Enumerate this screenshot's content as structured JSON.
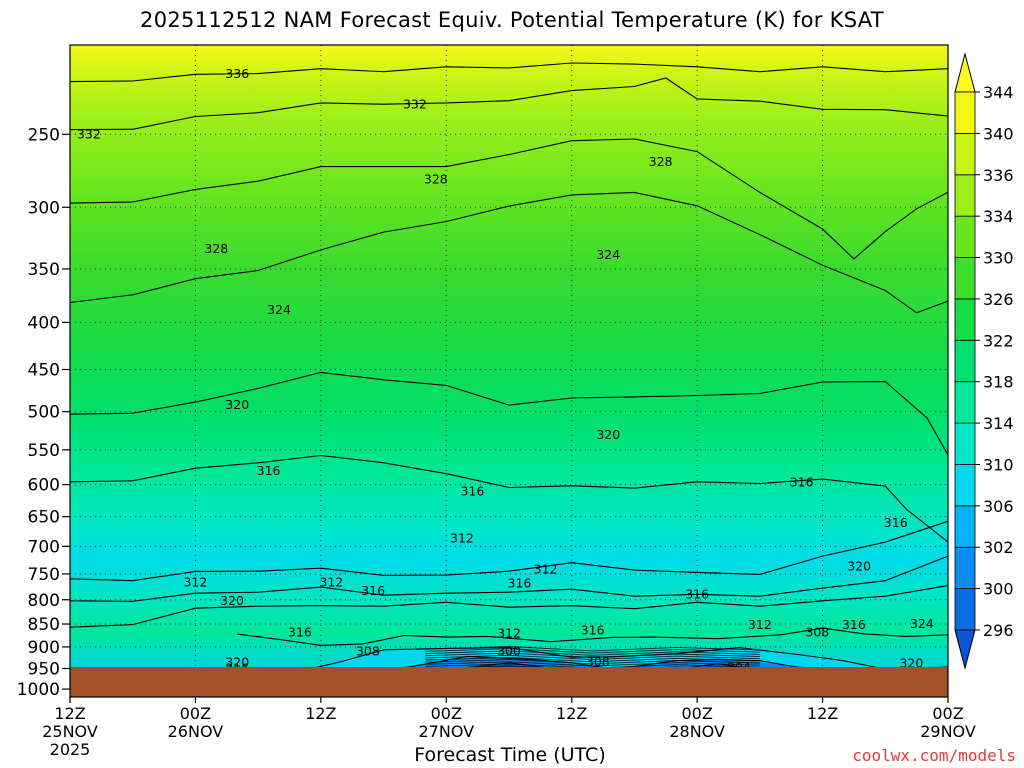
{
  "chart_data": {
    "type": "heatmap",
    "title": "2025112512 NAM Forecast Equiv. Potential Temperature (K) for KSAT",
    "xlabel": "Forecast Time (UTC)",
    "credit": "coolwx.com/models",
    "x_ticks": [
      {
        "hours": 0,
        "line1": "12Z",
        "line2": "25NOV",
        "line3": "2025"
      },
      {
        "hours": 12,
        "line1": "00Z",
        "line2": "26NOV",
        "line3": ""
      },
      {
        "hours": 24,
        "line1": "12Z",
        "line2": "",
        "line3": ""
      },
      {
        "hours": 36,
        "line1": "00Z",
        "line2": "27NOV",
        "line3": ""
      },
      {
        "hours": 48,
        "line1": "12Z",
        "line2": "",
        "line3": ""
      },
      {
        "hours": 60,
        "line1": "00Z",
        "line2": "28NOV",
        "line3": ""
      },
      {
        "hours": 72,
        "line1": "12Z",
        "line2": "",
        "line3": ""
      },
      {
        "hours": 84,
        "line1": "00Z",
        "line2": "29NOV",
        "line3": ""
      }
    ],
    "x_range_hours": [
      0,
      84
    ],
    "y_axis": {
      "scale": "log-pressure",
      "range_hPa": [
        1000,
        200
      ],
      "inverted": true
    },
    "y_ticks": [
      250,
      300,
      350,
      400,
      450,
      500,
      550,
      600,
      650,
      700,
      750,
      800,
      850,
      900,
      950,
      1000
    ],
    "colorbar": {
      "levels": [
        296,
        300,
        302,
        306,
        310,
        314,
        318,
        322,
        326,
        330,
        334,
        336,
        340,
        344
      ],
      "colors": [
        "#0a55d8",
        "#0a6ee6",
        "#0a8cf0",
        "#00b4f6",
        "#00d8f0",
        "#00e6c8",
        "#00e89a",
        "#00e070",
        "#18dc46",
        "#3edc2c",
        "#6ae61e",
        "#9aee1a",
        "#c8f414",
        "#f0f814",
        "#fffc1e"
      ]
    },
    "grid": "dotted",
    "surface_color": "#a2512a",
    "contour_interval_K": 4,
    "series": [
      {
        "theta": 336,
        "points": [
          [
            0,
            220
          ],
          [
            6,
            218
          ],
          [
            12,
            216
          ],
          [
            18,
            214
          ],
          [
            24,
            213
          ],
          [
            30,
            213
          ],
          [
            36,
            212
          ],
          [
            42,
            211
          ],
          [
            48,
            210
          ],
          [
            54,
            209
          ],
          [
            60,
            212
          ],
          [
            66,
            213
          ],
          [
            72,
            212
          ],
          [
            78,
            213
          ],
          [
            84,
            213
          ]
        ]
      },
      {
        "theta": 332,
        "points": [
          [
            0,
            248
          ],
          [
            6,
            246
          ],
          [
            12,
            240
          ],
          [
            18,
            236
          ],
          [
            24,
            232
          ],
          [
            30,
            231
          ],
          [
            36,
            232
          ],
          [
            42,
            229
          ],
          [
            48,
            225
          ],
          [
            54,
            221
          ],
          [
            57,
            218
          ],
          [
            60,
            228
          ],
          [
            66,
            231
          ],
          [
            72,
            234
          ],
          [
            78,
            236
          ],
          [
            84,
            238
          ]
        ]
      },
      {
        "theta": 328,
        "points": [
          [
            0,
            298
          ],
          [
            6,
            295
          ],
          [
            12,
            288
          ],
          [
            18,
            280
          ],
          [
            24,
            272
          ],
          [
            30,
            270
          ],
          [
            36,
            272
          ],
          [
            42,
            262
          ],
          [
            48,
            255
          ],
          [
            54,
            252
          ],
          [
            60,
            262
          ],
          [
            66,
            288
          ],
          [
            72,
            318
          ],
          [
            75,
            340
          ],
          [
            78,
            320
          ],
          [
            81,
            300
          ],
          [
            84,
            290
          ]
        ]
      },
      {
        "theta": 324,
        "points": [
          [
            0,
            382
          ],
          [
            6,
            372
          ],
          [
            12,
            360
          ],
          [
            18,
            350
          ],
          [
            24,
            335
          ],
          [
            30,
            318
          ],
          [
            36,
            312
          ],
          [
            42,
            298
          ],
          [
            48,
            292
          ],
          [
            54,
            288
          ],
          [
            60,
            300
          ],
          [
            66,
            320
          ],
          [
            72,
            348
          ],
          [
            78,
            368
          ],
          [
            81,
            392
          ],
          [
            84,
            378
          ]
        ]
      },
      {
        "theta": 320,
        "points": [
          [
            0,
            505
          ],
          [
            6,
            500
          ],
          [
            12,
            490
          ],
          [
            18,
            470
          ],
          [
            24,
            455
          ],
          [
            30,
            460
          ],
          [
            36,
            470
          ],
          [
            42,
            490
          ],
          [
            48,
            485
          ],
          [
            54,
            480
          ],
          [
            60,
            482
          ],
          [
            66,
            476
          ],
          [
            72,
            466
          ],
          [
            78,
            462
          ],
          [
            82,
            510
          ],
          [
            84,
            555
          ]
        ]
      },
      {
        "theta": 316,
        "points": [
          [
            0,
            598
          ],
          [
            6,
            592
          ],
          [
            12,
            578
          ],
          [
            18,
            566
          ],
          [
            24,
            560
          ],
          [
            30,
            566
          ],
          [
            36,
            586
          ],
          [
            42,
            602
          ],
          [
            48,
            604
          ],
          [
            54,
            603
          ],
          [
            60,
            598
          ],
          [
            66,
            596
          ],
          [
            72,
            594
          ],
          [
            78,
            600
          ],
          [
            80,
            640
          ],
          [
            84,
            690
          ]
        ]
      },
      {
        "theta": 312,
        "points": [
          [
            0,
            762
          ],
          [
            6,
            760
          ],
          [
            12,
            748
          ],
          [
            18,
            742
          ],
          [
            24,
            742
          ],
          [
            30,
            750
          ],
          [
            36,
            755
          ],
          [
            42,
            742
          ],
          [
            48,
            732
          ],
          [
            54,
            740
          ],
          [
            60,
            750
          ],
          [
            66,
            748
          ],
          [
            72,
            720
          ],
          [
            78,
            690
          ],
          [
            84,
            660
          ]
        ]
      },
      {
        "theta": 316,
        "points": [
          [
            0,
            805
          ],
          [
            6,
            800
          ],
          [
            12,
            790
          ],
          [
            18,
            782
          ],
          [
            24,
            778
          ],
          [
            30,
            788
          ],
          [
            36,
            790
          ],
          [
            42,
            782
          ],
          [
            48,
            782
          ],
          [
            54,
            790
          ],
          [
            60,
            792
          ],
          [
            66,
            790
          ],
          [
            72,
            780
          ],
          [
            78,
            760
          ],
          [
            84,
            720
          ]
        ]
      },
      {
        "theta": 320,
        "points": [
          [
            0,
            860
          ],
          [
            6,
            848
          ],
          [
            12,
            820
          ],
          [
            18,
            810
          ],
          [
            24,
            815
          ],
          [
            30,
            810
          ],
          [
            36,
            808
          ],
          [
            42,
            812
          ],
          [
            48,
            815
          ],
          [
            54,
            815
          ],
          [
            60,
            808
          ],
          [
            66,
            810
          ],
          [
            72,
            805
          ],
          [
            78,
            790
          ],
          [
            84,
            775
          ]
        ]
      },
      {
        "theta": 312,
        "points": [
          [
            16,
            875
          ],
          [
            20,
            880
          ],
          [
            24,
            900
          ],
          [
            28,
            890
          ],
          [
            32,
            878
          ],
          [
            36,
            875
          ],
          [
            40,
            880
          ],
          [
            46,
            885
          ],
          [
            52,
            882
          ],
          [
            56,
            875
          ],
          [
            62,
            885
          ],
          [
            68,
            870
          ],
          [
            72,
            862
          ],
          [
            76,
            868
          ],
          [
            80,
            880
          ],
          [
            84,
            870
          ]
        ]
      },
      {
        "theta": 308,
        "points": [
          [
            22,
            960
          ],
          [
            26,
            930
          ],
          [
            30,
            910
          ],
          [
            36,
            900
          ],
          [
            42,
            905
          ],
          [
            48,
            920
          ],
          [
            52,
            926
          ],
          [
            58,
            912
          ],
          [
            64,
            905
          ],
          [
            70,
            915
          ],
          [
            74,
            935
          ],
          [
            78,
            948
          ],
          [
            84,
            950
          ]
        ]
      },
      {
        "theta": 304,
        "points": [
          [
            28,
            970
          ],
          [
            32,
            945
          ],
          [
            38,
            925
          ],
          [
            44,
            925
          ],
          [
            48,
            940
          ],
          [
            52,
            948
          ],
          [
            58,
            935
          ],
          [
            62,
            925
          ],
          [
            66,
            935
          ],
          [
            70,
            945
          ],
          [
            74,
            965
          ]
        ]
      },
      {
        "theta": 300,
        "points": [
          [
            32,
            975
          ],
          [
            36,
            950
          ],
          [
            42,
            940
          ],
          [
            48,
            952
          ],
          [
            52,
            958
          ],
          [
            58,
            948
          ],
          [
            62,
            942
          ],
          [
            66,
            950
          ],
          [
            70,
            968
          ]
        ]
      }
    ],
    "labels": [
      {
        "text": "336",
        "hours": 16,
        "p": 215
      },
      {
        "text": "332",
        "hours": 33,
        "p": 232
      },
      {
        "text": "332",
        "hours": 1.8,
        "p": 250
      },
      {
        "text": "328",
        "hours": 35,
        "p": 280
      },
      {
        "text": "328",
        "hours": 56.5,
        "p": 268
      },
      {
        "text": "328",
        "hours": 14,
        "p": 333
      },
      {
        "text": "324",
        "hours": 51.5,
        "p": 338
      },
      {
        "text": "324",
        "hours": 20,
        "p": 388
      },
      {
        "text": "320",
        "hours": 16,
        "p": 492
      },
      {
        "text": "320",
        "hours": 51.5,
        "p": 530
      },
      {
        "text": "316",
        "hours": 19,
        "p": 580
      },
      {
        "text": "316",
        "hours": 38.5,
        "p": 610
      },
      {
        "text": "316",
        "hours": 70,
        "p": 597
      },
      {
        "text": "316",
        "hours": 79,
        "p": 660
      },
      {
        "text": "312",
        "hours": 37.5,
        "p": 686
      },
      {
        "text": "312",
        "hours": 45.5,
        "p": 742
      },
      {
        "text": "312",
        "hours": 12,
        "p": 766
      },
      {
        "text": "312",
        "hours": 25,
        "p": 766
      },
      {
        "text": "316",
        "hours": 29,
        "p": 783
      },
      {
        "text": "316",
        "hours": 43,
        "p": 768
      },
      {
        "text": "316",
        "hours": 60,
        "p": 790
      },
      {
        "text": "320",
        "hours": 15.5,
        "p": 802
      },
      {
        "text": "320",
        "hours": 75.5,
        "p": 736
      },
      {
        "text": "316",
        "hours": 22,
        "p": 868
      },
      {
        "text": "312",
        "hours": 42,
        "p": 870
      },
      {
        "text": "316",
        "hours": 50,
        "p": 864
      },
      {
        "text": "312",
        "hours": 66,
        "p": 852
      },
      {
        "text": "308",
        "hours": 71.5,
        "p": 868
      },
      {
        "text": "316",
        "hours": 75,
        "p": 852
      },
      {
        "text": "324",
        "hours": 81.5,
        "p": 850
      },
      {
        "text": "308",
        "hours": 28.5,
        "p": 910
      },
      {
        "text": "300",
        "hours": 42,
        "p": 910
      },
      {
        "text": "308",
        "hours": 50.5,
        "p": 935
      },
      {
        "text": "304",
        "hours": 64,
        "p": 948
      },
      {
        "text": "320",
        "hours": 80.5,
        "p": 938
      },
      {
        "text": "320",
        "hours": 16,
        "p": 936
      },
      {
        "text": "316",
        "hours": 16,
        "p": 950
      }
    ]
  }
}
